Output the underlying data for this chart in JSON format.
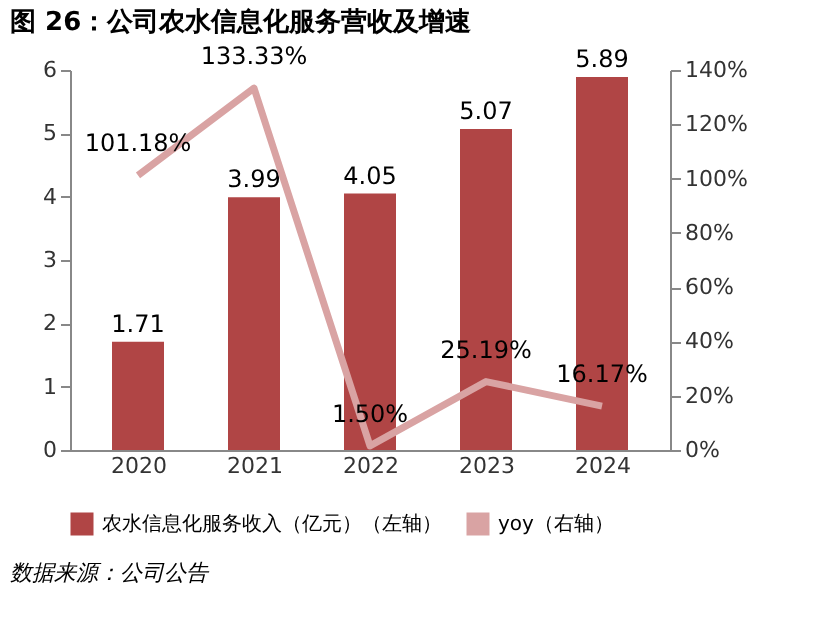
{
  "chart_data": {
    "type": "bar",
    "title": "图 26：公司农水信息化服务营收及增速",
    "categories": [
      "2020",
      "2021",
      "2022",
      "2023",
      "2024"
    ],
    "series": [
      {
        "name": "农水信息化服务收入（亿元）（左轴）",
        "color": "#b04545",
        "values": [
          1.71,
          3.99,
          4.05,
          5.07,
          5.89
        ],
        "value_labels": [
          "1.71",
          "3.99",
          "4.05",
          "5.07",
          "5.89"
        ]
      },
      {
        "name": "yoy（右轴）",
        "type": "line",
        "axis": "y2",
        "color": "#d9a3a3",
        "values": [
          101.18,
          133.33,
          1.5,
          25.19,
          16.17
        ],
        "value_labels": [
          "101.18%",
          "133.33%",
          "1.50%",
          "25.19%",
          "16.17%"
        ]
      }
    ],
    "ylim": [
      0,
      6
    ],
    "yticks": [
      0,
      1,
      2,
      3,
      4,
      5,
      6
    ],
    "y2lim": [
      0,
      140
    ],
    "y2ticks": [
      {
        "value": 0,
        "label": "0%"
      },
      {
        "value": 20,
        "label": "20%"
      },
      {
        "value": 40,
        "label": "40%"
      },
      {
        "value": 60,
        "label": "60%"
      },
      {
        "value": 80,
        "label": "80%"
      },
      {
        "value": 100,
        "label": "100%"
      },
      {
        "value": 120,
        "label": "120%"
      },
      {
        "value": 140,
        "label": "140%"
      }
    ],
    "legend": "bottom",
    "grid": false,
    "annotations": [
      "数据来源：公司公告"
    ]
  }
}
